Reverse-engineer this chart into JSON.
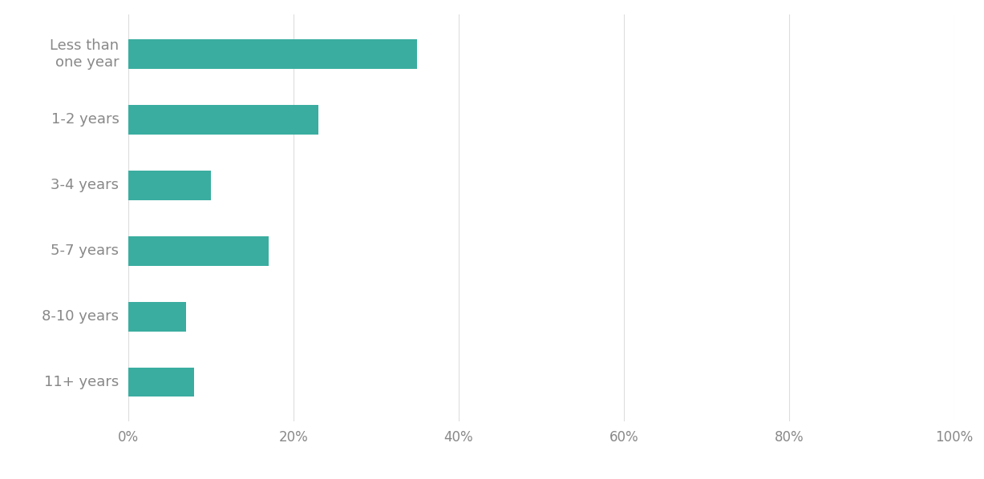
{
  "categories": [
    "Less than\none year",
    "1-2 years",
    "3-4 years",
    "5-7 years",
    "8-10 years",
    "11+ years"
  ],
  "values": [
    0.35,
    0.23,
    0.1,
    0.17,
    0.07,
    0.08
  ],
  "bar_color": "#3aada0",
  "background_color": "#ffffff",
  "text_color": "#888888",
  "xlim": [
    0,
    1.0
  ],
  "xticks": [
    0,
    0.2,
    0.4,
    0.6,
    0.8,
    1.0
  ],
  "xtick_labels": [
    "0%",
    "20%",
    "40%",
    "60%",
    "80%",
    "100%"
  ],
  "bar_height": 0.45,
  "label_fontsize": 13,
  "tick_fontsize": 12,
  "grid_color": "#dddddd",
  "spine_color": "#dddddd",
  "figsize": [
    12.27,
    5.98
  ],
  "dpi": 100
}
